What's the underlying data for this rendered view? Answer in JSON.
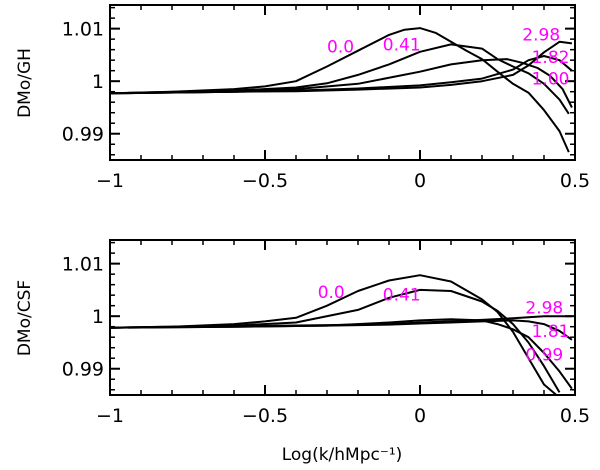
{
  "chart_data": [
    {
      "type": "line",
      "panel": "top",
      "xlabel": "",
      "ylabel": "DMo/GH",
      "xlim": [
        -1,
        0.5
      ],
      "ylim": [
        0.985,
        1.0145
      ],
      "xticks": [
        -1,
        -0.5,
        0,
        0.5
      ],
      "xtick_labels": [
        "−1",
        "−0.5",
        "0",
        "0.5"
      ],
      "yticks": [
        0.99,
        1,
        1.01
      ],
      "ytick_labels": [
        "0.99",
        "1",
        "1.01"
      ],
      "annotation_color": "#ff00ff",
      "annotations": [
        {
          "text": "0.0",
          "x": -0.3,
          "y": 1.0055
        },
        {
          "text": "0.41",
          "x": -0.12,
          "y": 1.0058
        },
        {
          "text": "2.98",
          "x": 0.33,
          "y": 1.0077
        },
        {
          "text": "1.82",
          "x": 0.36,
          "y": 1.0035
        },
        {
          "text": "1.00",
          "x": 0.36,
          "y": 0.9994
        }
      ],
      "series": [
        {
          "name": "z=0.0",
          "x": [
            -1,
            -0.8,
            -0.6,
            -0.5,
            -0.4,
            -0.3,
            -0.2,
            -0.1,
            -0.05,
            0,
            0.05,
            0.1,
            0.15,
            0.2,
            0.25,
            0.3,
            0.35,
            0.4,
            0.45,
            0.48
          ],
          "y": [
            0.9977,
            0.998,
            0.9985,
            0.999,
            1.0,
            1.0028,
            1.0058,
            1.0088,
            1.0098,
            1.0101,
            1.0092,
            1.0075,
            1.0058,
            1.0042,
            1.0018,
            0.9995,
            0.9978,
            0.9945,
            0.9905,
            0.9865
          ]
        },
        {
          "name": "z=0.41",
          "x": [
            -1,
            -0.6,
            -0.4,
            -0.3,
            -0.2,
            -0.1,
            0,
            0.1,
            0.2,
            0.25,
            0.3,
            0.35,
            0.4,
            0.45,
            0.48
          ],
          "y": [
            0.9977,
            0.9982,
            0.9988,
            0.9996,
            1.0012,
            1.0032,
            1.0056,
            1.007,
            1.0062,
            1.0042,
            1.0028,
            1.0015,
            0.9995,
            0.9965,
            0.9938
          ]
        },
        {
          "name": "z=1.00",
          "x": [
            -1,
            -0.6,
            -0.4,
            -0.2,
            0,
            0.1,
            0.2,
            0.28,
            0.33,
            0.38,
            0.42,
            0.46,
            0.49
          ],
          "y": [
            0.9977,
            0.998,
            0.9985,
            0.9995,
            1.0018,
            1.0032,
            1.004,
            1.0042,
            1.0035,
            1.0025,
            1.001,
            0.9985,
            0.995
          ]
        },
        {
          "name": "z=1.82",
          "x": [
            -1,
            -0.6,
            -0.4,
            -0.2,
            0,
            0.1,
            0.2,
            0.3,
            0.35,
            0.4,
            0.45,
            0.49
          ],
          "y": [
            0.9977,
            0.998,
            0.9982,
            0.9986,
            0.9992,
            0.9998,
            1.0005,
            1.0022,
            1.004,
            1.0048,
            1.004,
            1.002
          ]
        },
        {
          "name": "z=2.98",
          "x": [
            -1,
            -0.6,
            -0.4,
            -0.2,
            0,
            0.1,
            0.2,
            0.3,
            0.35,
            0.4,
            0.45,
            0.49
          ],
          "y": [
            0.9977,
            0.998,
            0.9981,
            0.9984,
            0.9988,
            0.9993,
            1.0,
            1.0012,
            1.003,
            1.0055,
            1.0075,
            1.0072
          ]
        }
      ]
    },
    {
      "type": "line",
      "panel": "bottom",
      "xlabel": "Log(k/hMpc⁻¹)",
      "ylabel": "DMo/CSF",
      "xlim": [
        -1,
        0.5
      ],
      "ylim": [
        0.985,
        1.0145
      ],
      "xticks": [
        -1,
        -0.5,
        0,
        0.5
      ],
      "xtick_labels": [
        "−1",
        "−0.5",
        "0",
        "0.5"
      ],
      "yticks": [
        0.99,
        1,
        1.01
      ],
      "ytick_labels": [
        "0.99",
        "1",
        "1.01"
      ],
      "annotation_color": "#ff00ff",
      "annotations": [
        {
          "text": "0.0",
          "x": -0.33,
          "y": 1.0035
        },
        {
          "text": "0.41",
          "x": -0.12,
          "y": 1.003
        },
        {
          "text": "2.98",
          "x": 0.34,
          "y": 1.0005
        },
        {
          "text": "1.81",
          "x": 0.36,
          "y": 0.996
        },
        {
          "text": "0.99",
          "x": 0.34,
          "y": 0.9916
        }
      ],
      "series": [
        {
          "name": "z=0.0",
          "x": [
            -1,
            -0.8,
            -0.6,
            -0.5,
            -0.4,
            -0.3,
            -0.2,
            -0.1,
            0,
            0.1,
            0.2,
            0.25,
            0.3,
            0.35,
            0.4,
            0.44
          ],
          "y": [
            0.9978,
            0.998,
            0.9985,
            0.999,
            0.9997,
            1.002,
            1.0048,
            1.0068,
            1.0078,
            1.0066,
            1.0032,
            1.0008,
            0.997,
            0.992,
            0.987,
            0.9845
          ]
        },
        {
          "name": "z=0.41",
          "x": [
            -1,
            -0.6,
            -0.4,
            -0.2,
            -0.1,
            0,
            0.1,
            0.2,
            0.25,
            0.3,
            0.35,
            0.4,
            0.45
          ],
          "y": [
            0.9978,
            0.9982,
            0.9988,
            1.0012,
            1.0035,
            1.005,
            1.0048,
            1.0028,
            1.001,
            0.9985,
            0.995,
            0.9905,
            0.9855
          ]
        },
        {
          "name": "z=0.99",
          "x": [
            -1,
            -0.6,
            -0.3,
            -0.1,
            0,
            0.1,
            0.2,
            0.25,
            0.3,
            0.35,
            0.4,
            0.45,
            0.49
          ],
          "y": [
            0.9978,
            0.998,
            0.9982,
            0.9988,
            0.9992,
            0.9994,
            0.9992,
            0.9985,
            0.9975,
            0.996,
            0.993,
            0.9895,
            0.9862
          ]
        },
        {
          "name": "z=1.81",
          "x": [
            -1,
            -0.6,
            -0.3,
            -0.1,
            0,
            0.1,
            0.2,
            0.3,
            0.35,
            0.4,
            0.45,
            0.49
          ],
          "y": [
            0.9978,
            0.998,
            0.9982,
            0.9984,
            0.9986,
            0.9988,
            0.999,
            0.9992,
            0.999,
            0.9985,
            0.9972,
            0.9955
          ]
        },
        {
          "name": "z=2.98",
          "x": [
            -1,
            -0.6,
            -0.3,
            -0.1,
            0,
            0.1,
            0.2,
            0.3,
            0.35,
            0.4,
            0.45,
            0.49
          ],
          "y": [
            0.9978,
            0.9981,
            0.9983,
            0.9985,
            0.9988,
            0.999,
            0.9993,
            0.9996,
            0.9998,
            1.0,
            1.0,
            1.0
          ]
        }
      ]
    }
  ]
}
